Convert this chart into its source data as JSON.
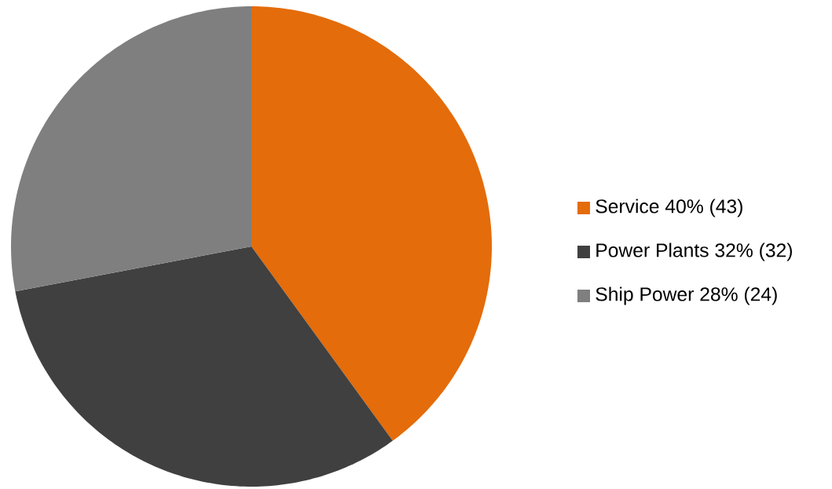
{
  "chart_data": {
    "type": "pie",
    "categories": [
      "Service 40% (43)",
      "Power Plants 32% (32)",
      "Ship Power 28% (24)"
    ],
    "values": [
      40,
      32,
      28
    ],
    "colors": [
      "#e46c0a",
      "#404040",
      "#7f7f7f"
    ],
    "legend": "right"
  }
}
